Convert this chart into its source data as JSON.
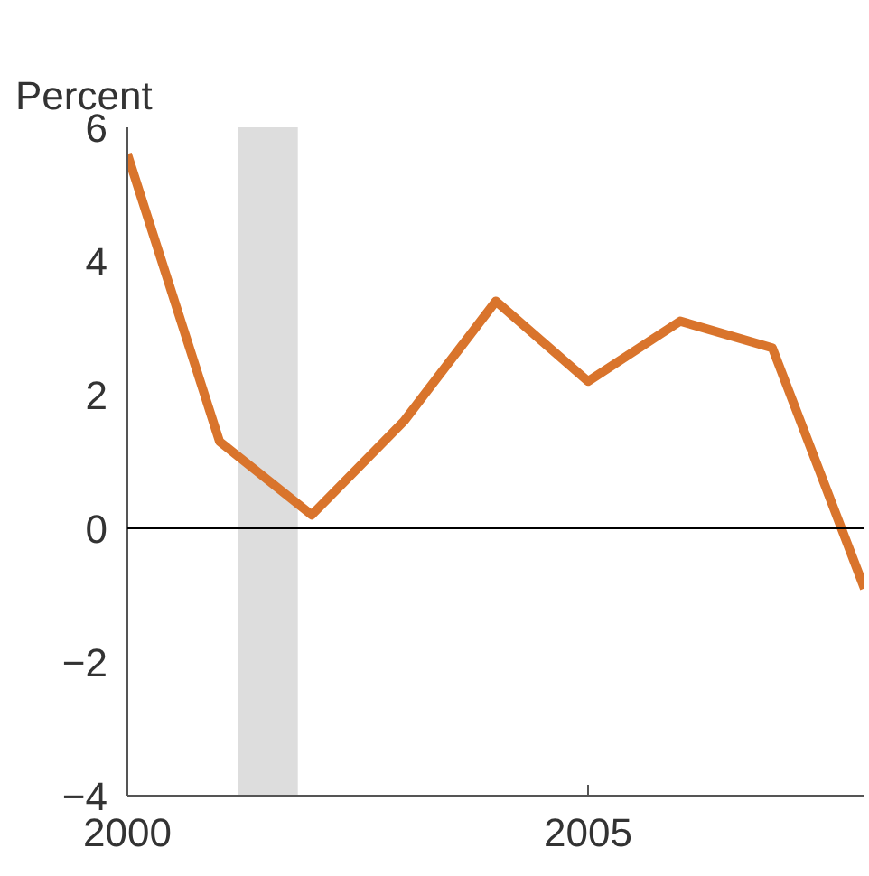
{
  "chart_data": {
    "type": "line",
    "ylabel": "Percent",
    "x": [
      2000,
      2001,
      2002,
      2003,
      2004,
      2005,
      2006,
      2007,
      2008
    ],
    "series": [
      {
        "color": "#d9742c",
        "values": [
          5.6,
          1.3,
          0.2,
          1.6,
          3.4,
          2.2,
          3.1,
          2.7,
          -0.9
        ]
      }
    ],
    "xlim": [
      2000,
      2008
    ],
    "xticks": [
      2000,
      2005
    ],
    "ylim": [
      -4,
      6
    ],
    "yticks": [
      -4,
      -2,
      0,
      2,
      4,
      6
    ],
    "ref_lines": [
      {
        "axis": "y",
        "value": 0,
        "color": "#000000"
      }
    ],
    "bands": [
      {
        "axis": "x",
        "from": 2001.2,
        "to": 2001.85,
        "color": "#dddddd"
      }
    ],
    "grid": false,
    "marker": "none",
    "line_style": "solid"
  }
}
